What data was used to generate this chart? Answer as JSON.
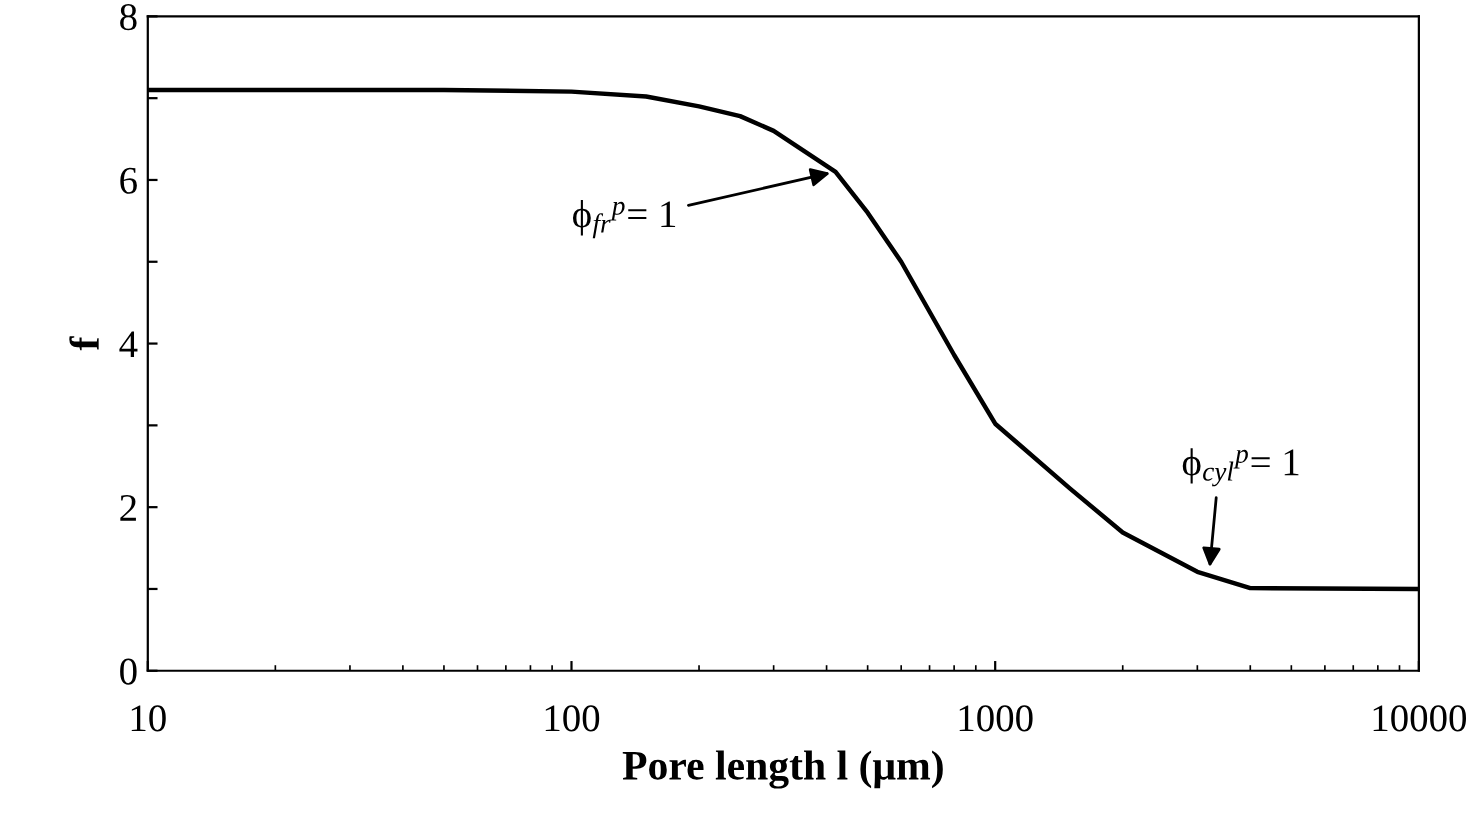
{
  "chart_data": {
    "type": "line",
    "xlabel": "Pore length l (μm)",
    "ylabel": "f",
    "x": [
      10,
      50,
      100,
      150,
      200,
      250,
      300,
      420,
      500,
      600,
      800,
      1000,
      1500,
      2000,
      3000,
      4000,
      10000
    ],
    "series": [
      {
        "color": "#000000",
        "values": [
          7.1,
          7.1,
          7.08,
          7.02,
          6.9,
          6.78,
          6.6,
          6.1,
          5.6,
          5.0,
          3.86,
          3.02,
          2.23,
          1.69,
          1.21,
          1.01,
          1.0
        ]
      }
    ],
    "log": "x",
    "xlim": [
      10,
      10000
    ],
    "xticks": [
      10,
      100,
      1000,
      10000
    ],
    "ylim": [
      0,
      8
    ],
    "yticks": [
      0,
      {
        "value": 1,
        "label": null
      },
      2,
      {
        "value": 3,
        "label": null
      },
      4,
      {
        "value": 5,
        "label": null
      },
      6,
      {
        "value": 7,
        "label": null
      },
      8
    ],
    "annotations": [
      {
        "text": "ϕ$_{fr}$$^{p}$= 1",
        "x": 420,
        "y": 6.1
      },
      {
        "text": "ϕ$_{cyl}$$^{p}$= 1",
        "x": 3200,
        "y": 1.2
      }
    ],
    "grid": false,
    "legend": false,
    "marker": "none",
    "line_style": "solid"
  }
}
